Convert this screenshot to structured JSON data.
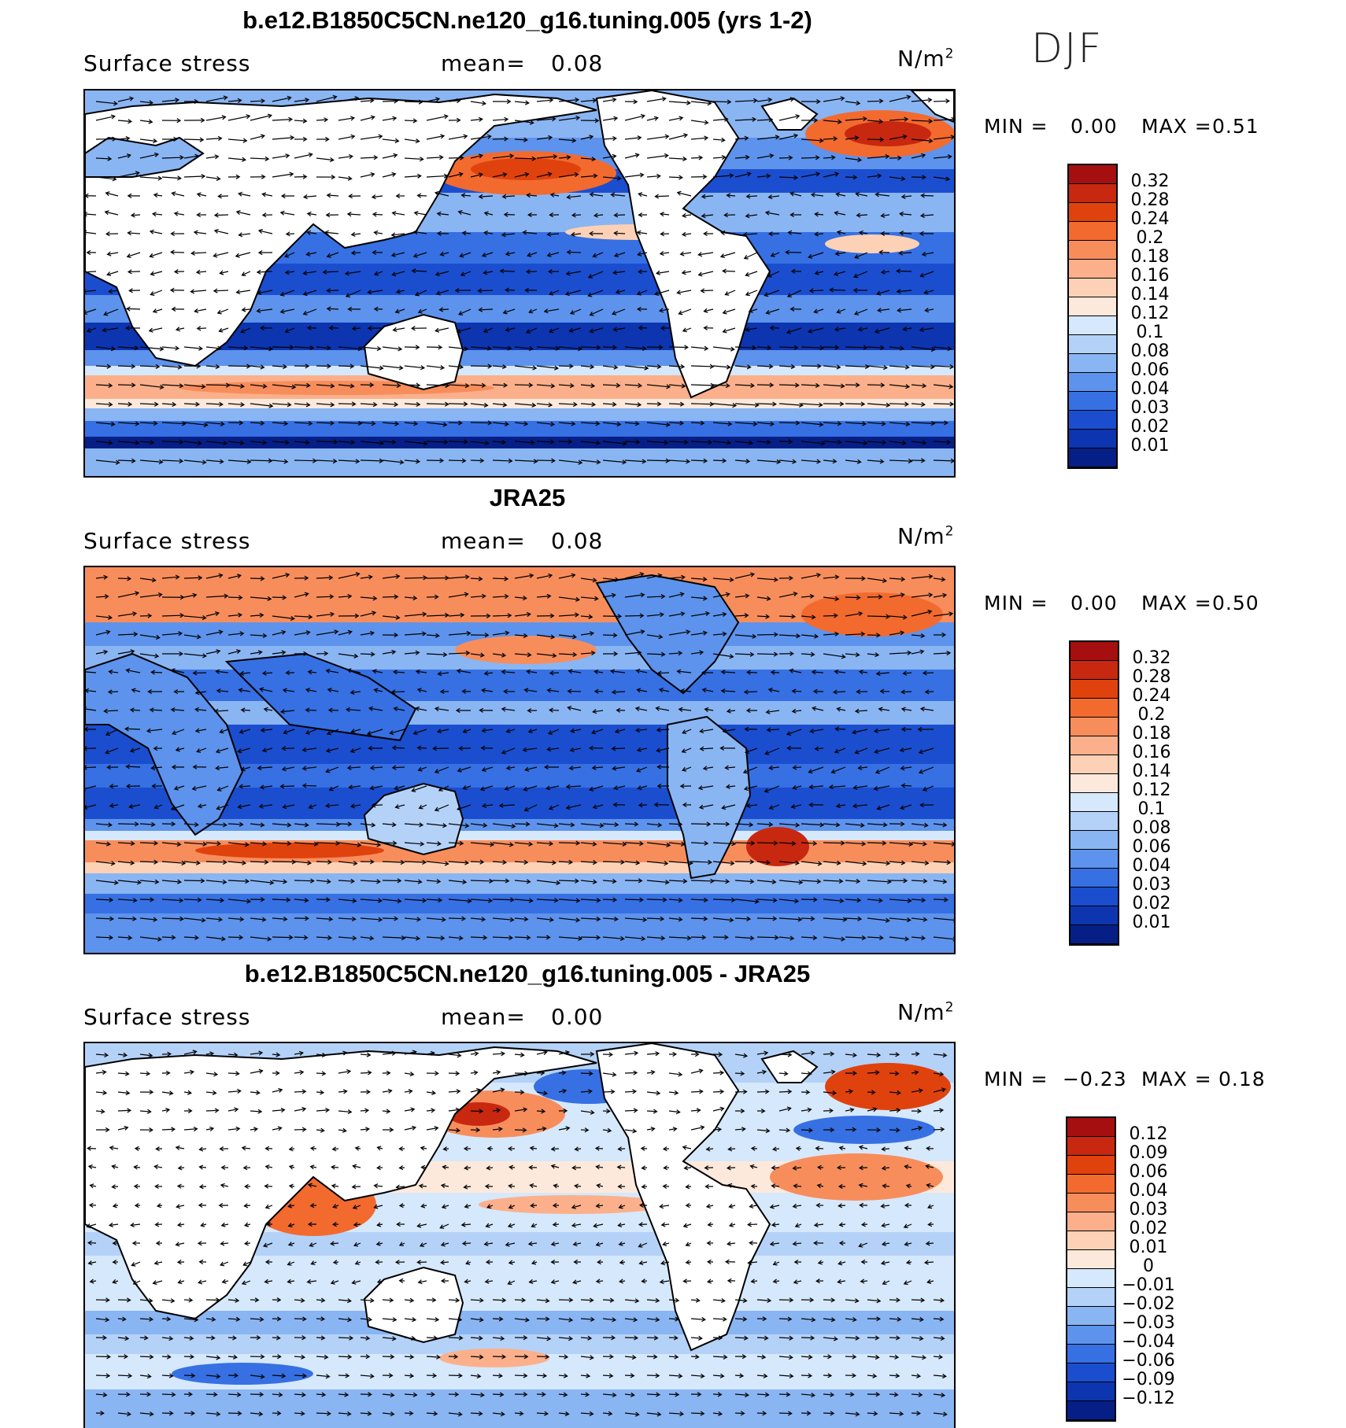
{
  "season": "DJF",
  "panels": [
    {
      "title": "b.e12.B1850C5CN.ne120_g16.tuning.005 (yrs 1-2)",
      "variable": "Surface stress",
      "mean_label": "mean=",
      "mean_value": "0.08",
      "units_base": "N/m",
      "units_exp": "2",
      "min_label": "MIN =",
      "min_value": "0.00",
      "max_label": "MAX =",
      "max_value": "0.51",
      "colorbar": {
        "labels": [
          "0.32",
          "0.28",
          "0.24",
          "0.2",
          "0.18",
          "0.16",
          "0.14",
          "0.12",
          "0.1",
          "0.08",
          "0.06",
          "0.04",
          "0.03",
          "0.02",
          "0.01"
        ],
        "colors": [
          "#a50f0f",
          "#c8280f",
          "#e0420e",
          "#f36a2f",
          "#f88d5c",
          "#fbb08b",
          "#fcd1b6",
          "#fde9dc",
          "#d6e8fb",
          "#b4d2f8",
          "#8ab5f3",
          "#5d93ec",
          "#3670e3",
          "#1b4ecf",
          "#0d35b0",
          "#061f87"
        ]
      }
    },
    {
      "title": "JRA25",
      "variable": "Surface stress",
      "mean_label": "mean=",
      "mean_value": "0.08",
      "units_base": "N/m",
      "units_exp": "2",
      "min_label": "MIN =",
      "min_value": "0.00",
      "max_label": "MAX =",
      "max_value": "0.50",
      "colorbar": {
        "labels": [
          "0.32",
          "0.28",
          "0.24",
          "0.2",
          "0.18",
          "0.16",
          "0.14",
          "0.12",
          "0.1",
          "0.08",
          "0.06",
          "0.04",
          "0.03",
          "0.02",
          "0.01"
        ],
        "colors": [
          "#a50f0f",
          "#c8280f",
          "#e0420e",
          "#f36a2f",
          "#f88d5c",
          "#fbb08b",
          "#fcd1b6",
          "#fde9dc",
          "#d6e8fb",
          "#b4d2f8",
          "#8ab5f3",
          "#5d93ec",
          "#3670e3",
          "#1b4ecf",
          "#0d35b0",
          "#061f87"
        ]
      }
    },
    {
      "title": "b.e12.B1850C5CN.ne120_g16.tuning.005 - JRA25",
      "variable": "Surface stress",
      "mean_label": "mean=",
      "mean_value": "0.00",
      "units_base": "N/m",
      "units_exp": "2",
      "min_label": "MIN =",
      "min_value": "−0.23",
      "max_label": "MAX =",
      "max_value": "0.18",
      "colorbar": {
        "labels": [
          "0.12",
          "0.09",
          "0.06",
          "0.04",
          "0.03",
          "0.02",
          "0.01",
          "0",
          "−0.01",
          "−0.02",
          "−0.03",
          "−0.04",
          "−0.06",
          "−0.09",
          "−0.12"
        ],
        "colors": [
          "#a50f0f",
          "#c8280f",
          "#e0420e",
          "#f36a2f",
          "#f88d5c",
          "#fbb08b",
          "#fcd1b6",
          "#fde9dc",
          "#d6e8fb",
          "#b4d2f8",
          "#8ab5f3",
          "#5d93ec",
          "#3670e3",
          "#1b4ecf",
          "#0d35b0",
          "#061f87"
        ]
      }
    }
  ]
}
